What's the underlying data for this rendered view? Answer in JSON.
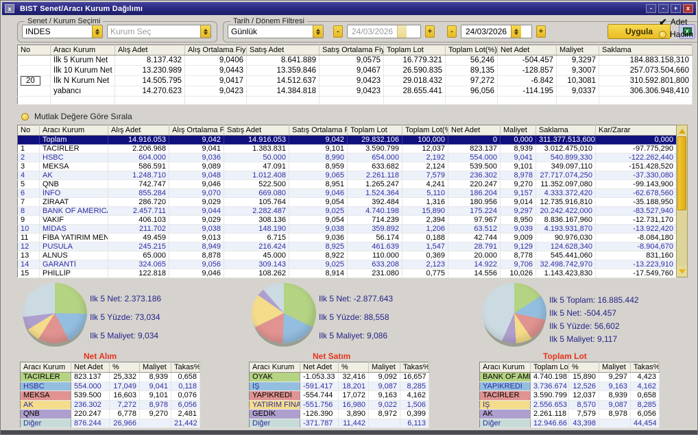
{
  "window": {
    "title": "BIST Senet/Aracı Kurum Dağılımı",
    "left_close": "x",
    "controls": {
      "min1": "-",
      "min2": "-",
      "max": "+",
      "close": "x"
    }
  },
  "filters": {
    "group1_label": "Senet / Kurum Seçimi",
    "senet_value": "INDES",
    "kurum_placeholder": "Kurum Seç",
    "group2_label": "Tarih / Dönem Filtresi",
    "period_value": "Günlük",
    "date_from": "24/03/2026",
    "date_to": "24/03/2026",
    "minus_label": "-",
    "plus_label": "+",
    "apply_label": "Uygula",
    "excel_icon_label": "X",
    "mode_adet": "Adet",
    "mode_hacim": "Hacim",
    "mode_selected": "Adet"
  },
  "summary_table": {
    "columns": [
      "No",
      "Aracı Kurum",
      "Alış Adet",
      "Alış Ortalama Fiyat",
      "Satış Adet",
      "Satış Ortalama Fiyat",
      "Toplam Lot",
      "Toplam Lot(%)",
      "Net Adet",
      "Maliyet",
      "Saklama"
    ],
    "rows": [
      [
        "",
        "İlk 5 Kurum Net",
        "8.137.432",
        "9,0406",
        "8.641.889",
        "9,0575",
        "16.779.321",
        "56,246",
        "-504.457",
        "9,3297",
        "184.883.158,310"
      ],
      [
        "",
        "İlk 10 Kurum Net",
        "13.230.989",
        "9,0443",
        "13.359.846",
        "9,0467",
        "26.590.835",
        "89,135",
        "-128.857",
        "9,3007",
        "257.073.504,660"
      ],
      [
        "20",
        "İlk N Kurum Net",
        "14.505.795",
        "9,0417",
        "14.512.637",
        "9,0423",
        "29.018.432",
        "97,272",
        "-6.842",
        "10,3081",
        "310.592.801,800"
      ],
      [
        "",
        "yabancı",
        "14.270.623",
        "9,0423",
        "14.384.818",
        "9,0423",
        "28.655.441",
        "96,056",
        "-114.195",
        "9,0337",
        "306.306.948,410"
      ],
      [
        "",
        "",
        "",
        "",
        "",
        "",
        "",
        "",
        "",
        "",
        ""
      ]
    ]
  },
  "sort_label": "Mutlak Değere Göre Sırala",
  "main_table": {
    "columns": [
      "No",
      "Aracı Kurum",
      "Alış Adet",
      "Alış Ortalama Fiy",
      "Satış Adet",
      "Satış Ortalama Fi",
      "Toplam Lot",
      "Toplam Lot(%",
      "Net Adet",
      "Maliyet",
      "Saklama",
      "Kar/Zarar"
    ],
    "rows": [
      [
        "",
        "Toplam",
        "14.916.053",
        "9,042",
        "14.916.053",
        "9,042",
        "29.832.106",
        "100,000",
        "0",
        "0,000",
        "311.377.513,600",
        "0,000"
      ],
      [
        "1",
        "TACİRLER",
        "2.206.968",
        "9,041",
        "1.383.831",
        "9,101",
        "3.590.799",
        "12,037",
        "823.137",
        "8,939",
        "3.012.475,010",
        "-97.775,290"
      ],
      [
        "2",
        "HSBC",
        "604.000",
        "9,036",
        "50.000",
        "8,990",
        "654.000",
        "2,192",
        "554.000",
        "9,041",
        "540.899,330",
        "-122.262,440"
      ],
      [
        "3",
        "MEKSA",
        "586.591",
        "9,089",
        "47.091",
        "8,959",
        "633.682",
        "2,124",
        "539.500",
        "9,101",
        "349.097,110",
        "-151.428,520"
      ],
      [
        "4",
        "AK",
        "1.248.710",
        "9,048",
        "1.012.408",
        "9,065",
        "2.261.118",
        "7,579",
        "236.302",
        "8,978",
        "27.717.074,250",
        "-37.330,080"
      ],
      [
        "5",
        "QNB",
        "742.747",
        "9,046",
        "522.500",
        "8,951",
        "1.265.247",
        "4,241",
        "220.247",
        "9,270",
        "11.352.097,080",
        "-99.143,900"
      ],
      [
        "6",
        "İNFO",
        "855.284",
        "9,070",
        "669.080",
        "9,046",
        "1.524.364",
        "5,110",
        "186.204",
        "9,157",
        "4.333.372,420",
        "-62.678,560"
      ],
      [
        "7",
        "ZİRAAT",
        "286.720",
        "9,029",
        "105.764",
        "9,054",
        "392.484",
        "1,316",
        "180.956",
        "9,014",
        "12.735.916,810",
        "-35.188,950"
      ],
      [
        "8",
        "BANK OF AMERICA Y",
        "2.457.711",
        "9,044",
        "2.282.487",
        "9,025",
        "4.740.198",
        "15,890",
        "175.224",
        "9,297",
        "20.242.422,000",
        "-83.527,940"
      ],
      [
        "9",
        "VAKIF",
        "406.103",
        "9,029",
        "308.136",
        "9,054",
        "714.239",
        "2,394",
        "97.967",
        "8,950",
        "8.836.167,960",
        "-12.731,170"
      ],
      [
        "10",
        "MİDAS",
        "211.702",
        "9,038",
        "148.190",
        "9,038",
        "359.892",
        "1,206",
        "63.512",
        "9,039",
        "4.193.931,870",
        "-13.922,420"
      ],
      [
        "11",
        "FİBA YATIRIM MENKU",
        "49.459",
        "9,013",
        "6.715",
        "9,036",
        "56.174",
        "0,188",
        "42.744",
        "9,009",
        "90.976,030",
        "-8.084,180"
      ],
      [
        "12",
        "PUSULA",
        "245.215",
        "8,949",
        "216.424",
        "8,925",
        "461.639",
        "1,547",
        "28.791",
        "9,129",
        "124.628,340",
        "-8.904,670"
      ],
      [
        "13",
        "ALNUS",
        "65.000",
        "8,878",
        "45.000",
        "8,922",
        "110.000",
        "0,369",
        "20.000",
        "8,778",
        "545.441,060",
        "831,160"
      ],
      [
        "14",
        "GARANTİ",
        "324.065",
        "9,056",
        "309.143",
        "9,025",
        "633.208",
        "2,123",
        "14.922",
        "9,706",
        "32.498.742,970",
        "-13.223,910"
      ],
      [
        "15",
        "PHİLLİP",
        "122.818",
        "9,046",
        "108.262",
        "8,914",
        "231.080",
        "0,775",
        "14.556",
        "10,026",
        "1.143.423,830",
        "-17.549,760"
      ]
    ]
  },
  "panels": [
    {
      "stats": [
        "Ilk 5 Net: 2.373.186",
        "Ilk 5 Yüzde: 73,034",
        "Ilk 5 Maliyet: 9,034"
      ],
      "label": "Net Alım",
      "table": {
        "columns": [
          "Aracı Kurum",
          "Net Adet",
          "%",
          "Maliyet",
          "Takas%"
        ],
        "rows": [
          [
            "TACİRLER",
            "823.137",
            "25,332",
            "8,939",
            "0,658"
          ],
          [
            "HSBC",
            "554.000",
            "17,049",
            "9,041",
            "0,118"
          ],
          [
            "MEKSA",
            "539.500",
            "16,603",
            "9,101",
            "0,076"
          ],
          [
            "AK",
            "236.302",
            "7,272",
            "8,978",
            "6,056"
          ],
          [
            "QNB",
            "220.247",
            "6,778",
            "9,270",
            "2,481"
          ],
          [
            "Diğer",
            "876.244",
            "26,966",
            "",
            "21,442"
          ]
        ]
      }
    },
    {
      "stats": [
        "Ilk 5 Net: -2.877.643",
        "Ilk 5 Yüzde: 88,558",
        "Ilk 5 Maliyet: 9,086"
      ],
      "label": "Net Satım",
      "table": {
        "columns": [
          "Aracı Kurum",
          "Net Adet",
          "%",
          "Maliyet",
          "Takas%"
        ],
        "rows": [
          [
            "OYAK",
            "-1.053.33",
            "32,416",
            "9,092",
            "16,657"
          ],
          [
            "İŞ",
            "-591.417",
            "18,201",
            "9,087",
            "8,285"
          ],
          [
            "YAPIKREDİ",
            "-554.744",
            "17,072",
            "9,163",
            "4,162"
          ],
          [
            "YATIRIM FİNA",
            "-551.756",
            "16,980",
            "9,022",
            "1,506"
          ],
          [
            "GEDİK",
            "-126.390",
            "3,890",
            "8,972",
            "0,399"
          ],
          [
            "Diğer",
            "-371.787",
            "11,442",
            "",
            "6,113"
          ]
        ]
      }
    },
    {
      "stats": [
        "Ilk 5 Toplam: 16.885.442",
        "Ilk 5 Net: -504.457",
        "Ilk 5 Yüzde: 56,602",
        "Ilk 5 Maliyet: 9,117"
      ],
      "label": "Toplam Lot",
      "table": {
        "columns": [
          "Aracı Kurum",
          "Toplam Lot",
          "%",
          "Maliyet",
          "Takas%"
        ],
        "rows": [
          [
            "BANK OF AME",
            "4.740.198",
            "15,890",
            "9,297",
            "4,423"
          ],
          [
            "YAPIKREDİ",
            "3.736.674",
            "12,526",
            "9,163",
            "4,162"
          ],
          [
            "TACİRLER",
            "3.590.799",
            "12,037",
            "8,939",
            "0,658"
          ],
          [
            "İŞ",
            "2.556.653",
            "8,570",
            "9,087",
            "8,285"
          ],
          [
            "AK",
            "2.261.118",
            "7,579",
            "8,978",
            "6,056"
          ],
          [
            "Diğer",
            "12.946.66",
            "43,398",
            "",
            "44,454"
          ]
        ]
      }
    }
  ],
  "chart_data": [
    {
      "type": "pie",
      "title": "Net Alım",
      "labels": [
        "TACİRLER",
        "HSBC",
        "MEKSA",
        "AK",
        "QNB",
        "Diğer"
      ],
      "values": [
        25.332,
        17.049,
        16.603,
        7.272,
        6.778,
        26.966
      ],
      "colors": [
        "#b4d383",
        "#94bedf",
        "#e09391",
        "#f4dc8a",
        "#af9fce",
        "#ccdbe2"
      ]
    },
    {
      "type": "pie",
      "title": "Net Satım",
      "labels": [
        "OYAK",
        "İŞ",
        "YAPIKREDİ",
        "YATIRIM FİNA",
        "GEDİK",
        "Diğer"
      ],
      "values": [
        32.416,
        18.201,
        17.072,
        16.98,
        3.89,
        11.442
      ],
      "colors": [
        "#b4d383",
        "#94bedf",
        "#e09391",
        "#f4dc8a",
        "#af9fce",
        "#ccdbe2"
      ]
    },
    {
      "type": "pie",
      "title": "Toplam Lot",
      "labels": [
        "BANK OF AME",
        "YAPIKREDİ",
        "TACİRLER",
        "İŞ",
        "AK",
        "Diğer"
      ],
      "values": [
        15.89,
        12.526,
        12.037,
        8.57,
        7.579,
        43.398
      ],
      "colors": [
        "#b4d383",
        "#94bedf",
        "#e09391",
        "#f4dc8a",
        "#af9fce",
        "#ccdbe2"
      ]
    }
  ],
  "colors": {
    "titlebar": "#26267c",
    "accent_button": "#ecc12d",
    "selected_row": "#10107e",
    "alt_row_text": "#2d2da0",
    "chart_label_red": "#e5321c",
    "row_palette": [
      "#b4d383",
      "#94bedf",
      "#e09391",
      "#f4dc8a",
      "#af9fce",
      "#c7dcd8"
    ]
  }
}
